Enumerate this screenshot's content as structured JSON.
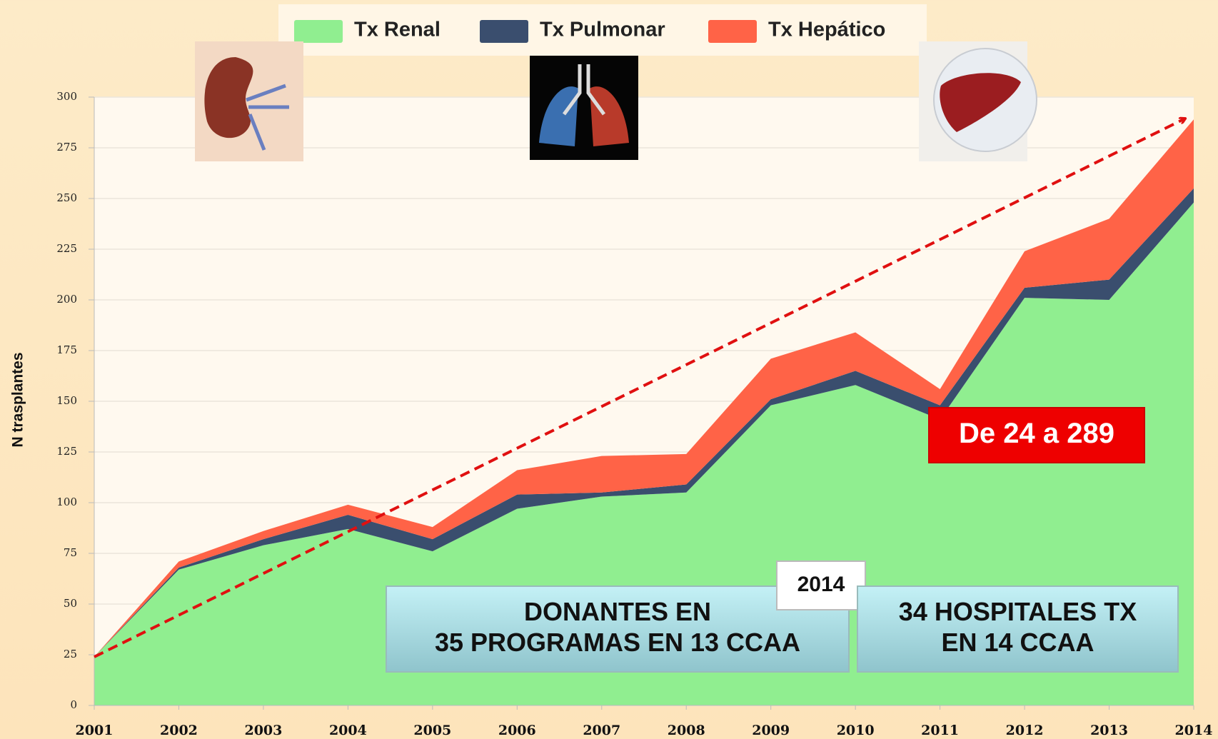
{
  "chart_data": {
    "type": "stacked_area",
    "y_label": "N trasplantes",
    "categories": [
      "2001",
      "2002",
      "2003",
      "2004",
      "2005",
      "2006",
      "2007",
      "2008",
      "2009",
      "2010",
      "2011",
      "2012",
      "2013",
      "2014"
    ],
    "series": [
      {
        "name": "Tx Renal",
        "color": "#90ee90",
        "values": [
          24,
          67,
          79,
          87,
          76,
          97,
          103,
          105,
          148,
          158,
          141,
          201,
          200,
          248
        ]
      },
      {
        "name": "Tx Pulmonar",
        "color": "#3a4e6e",
        "values": [
          0,
          1,
          3,
          7,
          6,
          7,
          2,
          4,
          3,
          7,
          7,
          5,
          10,
          7
        ]
      },
      {
        "name": "Tx Hepático",
        "color": "#ff6347",
        "values": [
          0,
          3,
          4,
          5,
          6,
          12,
          18,
          15,
          20,
          19,
          8,
          18,
          30,
          34
        ]
      }
    ],
    "ylim": [
      0,
      300
    ],
    "yticks": [
      0,
      25,
      50,
      75,
      100,
      125,
      150,
      175,
      200,
      225,
      250,
      275,
      300
    ],
    "grid": true,
    "annotations": [
      {
        "lines": [
          "De 24 a 289"
        ]
      },
      {
        "lines": [
          "DONANTES EN",
          "35 PROGRAMAS EN 13 CCAA"
        ]
      },
      {
        "lines": [
          "2014"
        ]
      },
      {
        "lines": [
          "34 HOSPITALES TX",
          "EN 14 CCAA"
        ]
      }
    ]
  }
}
